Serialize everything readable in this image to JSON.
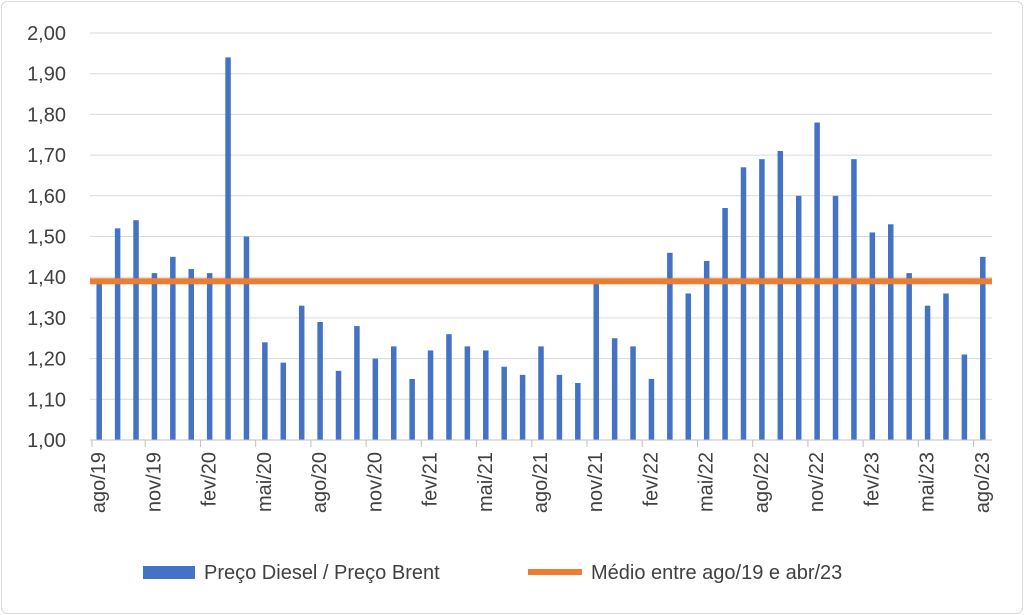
{
  "chart_data": {
    "type": "bar",
    "title": "",
    "xlabel": "",
    "ylabel": "",
    "ylim": [
      1.0,
      2.0
    ],
    "y_ticks": [
      "1,00",
      "1,10",
      "1,20",
      "1,30",
      "1,40",
      "1,50",
      "1,60",
      "1,70",
      "1,80",
      "1,90",
      "2,00"
    ],
    "grid": true,
    "legend_position": "bottom",
    "categories": [
      "ago/19",
      "set/19",
      "out/19",
      "nov/19",
      "dez/19",
      "jan/20",
      "fev/20",
      "mar/20",
      "abr/20",
      "mai/20",
      "jun/20",
      "jul/20",
      "ago/20",
      "set/20",
      "out/20",
      "nov/20",
      "dez/20",
      "jan/21",
      "fev/21",
      "mar/21",
      "abr/21",
      "mai/21",
      "jun/21",
      "jul/21",
      "ago/21",
      "set/21",
      "out/21",
      "nov/21",
      "dez/21",
      "jan/22",
      "fev/22",
      "mar/22",
      "abr/22",
      "mai/22",
      "jun/22",
      "jul/22",
      "ago/22",
      "set/22",
      "out/22",
      "nov/22",
      "dez/22",
      "jan/23",
      "fev/23",
      "mar/23",
      "abr/23",
      "mai/23",
      "jun/23",
      "jul/23",
      "ago/23"
    ],
    "x_tick_labels": [
      "ago/19",
      "nov/19",
      "fev/20",
      "mai/20",
      "ago/20",
      "nov/20",
      "fev/21",
      "mai/21",
      "ago/21",
      "nov/21",
      "fev/22",
      "mai/22",
      "ago/22",
      "nov/22",
      "fev/23",
      "mai/23",
      "ago/23"
    ],
    "series": [
      {
        "name": "Preço Diesel / Preço Brent",
        "type": "bar",
        "color": "#4472C4",
        "values": [
          1.39,
          1.52,
          1.54,
          1.41,
          1.45,
          1.42,
          1.41,
          1.94,
          1.5,
          1.24,
          1.19,
          1.33,
          1.29,
          1.17,
          1.28,
          1.2,
          1.23,
          1.15,
          1.22,
          1.26,
          1.23,
          1.22,
          1.18,
          1.16,
          1.23,
          1.16,
          1.14,
          1.39,
          1.25,
          1.23,
          1.15,
          1.46,
          1.36,
          1.44,
          1.57,
          1.67,
          1.69,
          1.71,
          1.6,
          1.78,
          1.6,
          1.69,
          1.51,
          1.53,
          1.41,
          1.33,
          1.36,
          1.21,
          1.45
        ]
      },
      {
        "name": "Médio entre ago/19 e abr/23",
        "type": "line",
        "color": "#ED7D31",
        "value": 1.39
      }
    ]
  },
  "colors": {
    "bar": "#4472C4",
    "average_line": "#ED7D31",
    "grid": "#d9d9d9",
    "axis_text": "#404040"
  }
}
